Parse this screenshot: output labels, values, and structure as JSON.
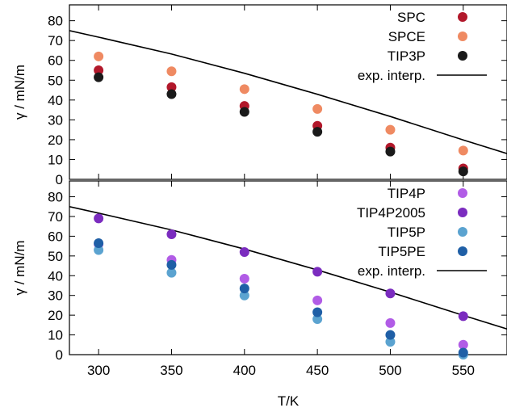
{
  "chart_data": [
    {
      "type": "scatter",
      "panel": "top",
      "ylabel": "γ / mN/m",
      "xlim": [
        280,
        580
      ],
      "ylim": [
        0,
        88
      ],
      "xticks": [
        300,
        350,
        400,
        450,
        500,
        550
      ],
      "yticks": [
        0,
        10,
        20,
        30,
        40,
        50,
        60,
        70,
        80
      ],
      "show_xtick_labels": false,
      "grid": false,
      "legend_position": "top-right",
      "series": [
        {
          "name": "SPC",
          "color": "#b2182b",
          "x": [
            300,
            350,
            400,
            450,
            500,
            550
          ],
          "y": [
            55,
            46.5,
            37,
            27,
            16,
            5.5
          ]
        },
        {
          "name": "SPCE",
          "color": "#ef8a62",
          "x": [
            300,
            350,
            400,
            450,
            500,
            550
          ],
          "y": [
            62,
            54.5,
            45.5,
            35.5,
            25,
            14.5
          ]
        },
        {
          "name": "TIP3P",
          "color": "#1a1a1a",
          "x": [
            300,
            350,
            400,
            450,
            500,
            550
          ],
          "y": [
            51.5,
            43,
            34,
            24,
            14,
            4
          ]
        }
      ],
      "line": {
        "name": "exp. interp.",
        "color": "#000000",
        "x": [
          280,
          300,
          350,
          400,
          450,
          500,
          550,
          580
        ],
        "y": [
          75,
          71.7,
          63.2,
          53.5,
          42.9,
          31.7,
          19.9,
          13
        ]
      }
    },
    {
      "type": "scatter",
      "panel": "bottom",
      "xlabel": "T/K",
      "ylabel": "γ / mN/m",
      "xlim": [
        280,
        580
      ],
      "ylim": [
        0,
        88
      ],
      "xticks": [
        300,
        350,
        400,
        450,
        500,
        550
      ],
      "yticks": [
        0,
        10,
        20,
        30,
        40,
        50,
        60,
        70,
        80
      ],
      "show_xtick_labels": true,
      "grid": false,
      "legend_position": "top-right",
      "series": [
        {
          "name": "TIP4P",
          "color": "#b15ce6",
          "x": [
            300,
            350,
            400,
            450,
            500,
            550
          ],
          "y": [
            56,
            48,
            38.5,
            27.5,
            16,
            5
          ]
        },
        {
          "name": "TIP4P2005",
          "color": "#7b2cbf",
          "x": [
            300,
            350,
            400,
            450,
            500,
            550
          ],
          "y": [
            69,
            61,
            52,
            42,
            31,
            19.5
          ]
        },
        {
          "name": "TIP5P",
          "color": "#5ba3d0",
          "x": [
            300,
            350,
            400,
            450,
            500,
            550
          ],
          "y": [
            53,
            41.5,
            30,
            18,
            6.5,
            0
          ]
        },
        {
          "name": "TIP5PE",
          "color": "#1f5fa6",
          "x": [
            300,
            350,
            400,
            450,
            500,
            550
          ],
          "y": [
            56.5,
            45.5,
            33.5,
            21.5,
            10,
            1
          ]
        }
      ],
      "line": {
        "name": "exp. interp.",
        "color": "#000000",
        "x": [
          280,
          300,
          350,
          400,
          450,
          500,
          550,
          580
        ],
        "y": [
          75,
          71.7,
          63.2,
          53.5,
          42.9,
          31.7,
          19.9,
          13
        ]
      }
    }
  ]
}
